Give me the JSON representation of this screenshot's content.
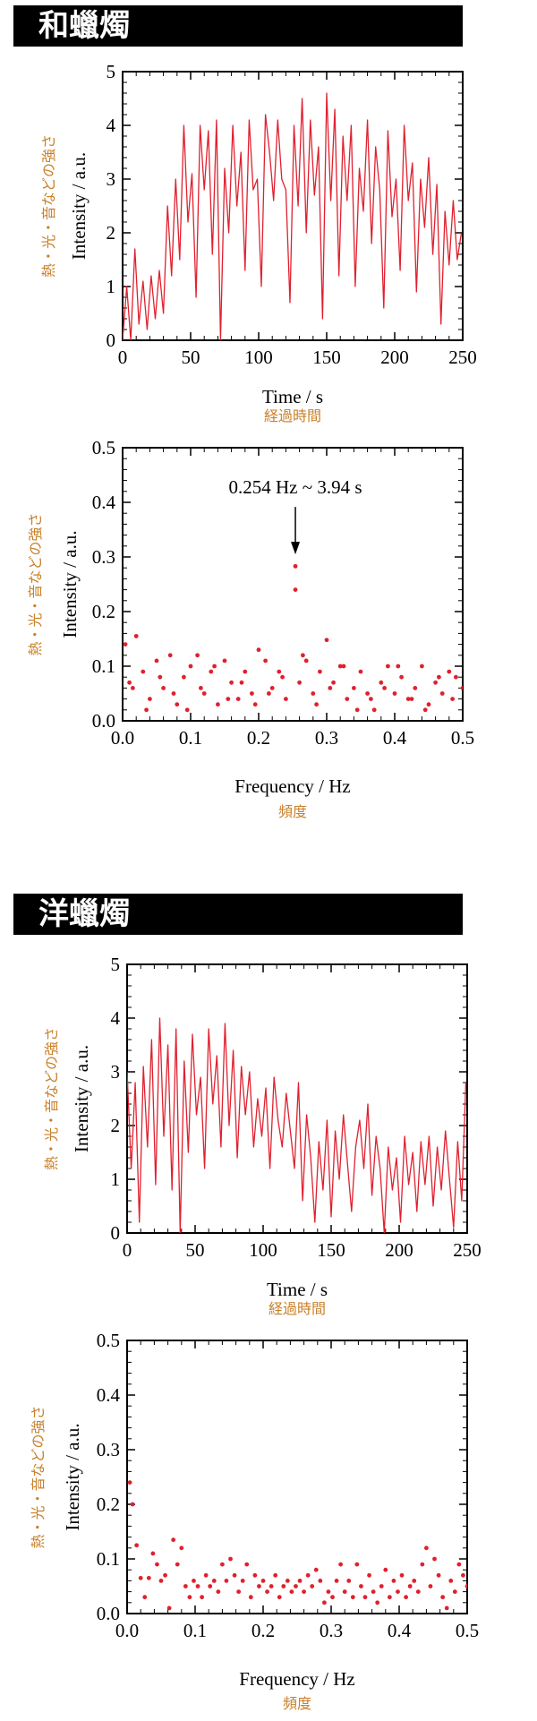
{
  "colors": {
    "line": "#e0202e",
    "point": "#e0202e",
    "jp_label": "#c8802a",
    "banner_bg": "#000000",
    "banner_text": "#ffffff"
  },
  "sections": [
    {
      "title": "和蠟燭"
    },
    {
      "title": "洋蠟燭"
    }
  ],
  "chart_data": [
    {
      "type": "line",
      "xlabel": "Time / s",
      "xlabel_jp": "経過時間",
      "ylabel": "Intensity / a.u.",
      "ylabel_jp": "熱・光・音などの強さ",
      "xlim": [
        0,
        250
      ],
      "ylim": [
        0,
        5
      ],
      "xticks": [
        "0",
        "50",
        "100",
        "150",
        "200",
        "250"
      ],
      "yticks": [
        "0",
        "1",
        "2",
        "3",
        "4",
        "5"
      ],
      "series": [
        {
          "x": [
            0,
            3,
            6,
            9,
            12,
            15,
            18,
            21,
            24,
            27,
            30,
            33,
            36,
            39,
            42,
            45,
            48,
            51,
            54,
            57,
            60,
            63,
            66,
            69,
            72,
            75,
            78,
            81,
            84,
            87,
            90,
            93,
            96,
            99,
            102,
            105,
            108,
            111,
            114,
            117,
            120,
            123,
            126,
            129,
            132,
            135,
            138,
            141,
            144,
            147,
            150,
            153,
            156,
            159,
            162,
            165,
            168,
            171,
            174,
            177,
            180,
            183,
            186,
            189,
            192,
            195,
            198,
            201,
            204,
            207,
            210,
            213,
            216,
            219,
            222,
            225,
            228,
            231,
            234,
            237,
            240,
            243,
            246,
            249
          ],
          "y": [
            0,
            1,
            0,
            1.7,
            0.3,
            1.1,
            0.2,
            1.2,
            0.4,
            1.3,
            0.5,
            2.5,
            1.2,
            3.0,
            1.5,
            4.0,
            2.2,
            3.1,
            0.8,
            4.0,
            2.8,
            3.9,
            1.6,
            4.1,
            0,
            3.2,
            2.0,
            4.0,
            2.5,
            3.5,
            1.3,
            4.1,
            2.8,
            3.0,
            1.0,
            4.2,
            3.5,
            2.6,
            4.1,
            3.0,
            2.8,
            0.7,
            4.0,
            2.5,
            4.5,
            2.0,
            4.1,
            2.7,
            3.6,
            0.4,
            4.6,
            2.6,
            4.3,
            1.2,
            3.8,
            2.6,
            4.0,
            1.0,
            3.2,
            2.4,
            4.1,
            1.8,
            3.6,
            2.8,
            0.6,
            3.9,
            2.3,
            3.0,
            1.3,
            4.0,
            2.6,
            3.3,
            0.9,
            3.0,
            2.1,
            3.4,
            1.6,
            2.9,
            0.3,
            2.4,
            1.4,
            2.6,
            1.5,
            2.0
          ]
        }
      ]
    },
    {
      "type": "scatter",
      "xlabel": "Frequency / Hz",
      "xlabel_jp": "頻度",
      "ylabel": "Intensity / a.u.",
      "ylabel_jp": "熱・光・音などの強さ",
      "xlim": [
        0,
        0.5
      ],
      "ylim": [
        0,
        0.5
      ],
      "xticks": [
        "0.0",
        "0.1",
        "0.2",
        "0.3",
        "0.4",
        "0.5"
      ],
      "yticks": [
        "0.0",
        "0.1",
        "0.2",
        "0.3",
        "0.4",
        "0.5"
      ],
      "annotation": {
        "text": "0.254 Hz ~ 3.94 s",
        "x": 0.254,
        "y": 0.285
      },
      "series": [
        {
          "x": [
            0.004,
            0.01,
            0.02,
            0.03,
            0.04,
            0.05,
            0.06,
            0.07,
            0.08,
            0.09,
            0.1,
            0.11,
            0.12,
            0.13,
            0.14,
            0.15,
            0.16,
            0.17,
            0.18,
            0.19,
            0.2,
            0.21,
            0.22,
            0.23,
            0.24,
            0.254,
            0.254,
            0.26,
            0.27,
            0.28,
            0.29,
            0.3,
            0.31,
            0.32,
            0.33,
            0.34,
            0.35,
            0.36,
            0.37,
            0.38,
            0.39,
            0.4,
            0.41,
            0.42,
            0.43,
            0.44,
            0.45,
            0.46,
            0.47,
            0.48,
            0.49,
            0.5,
            0.015,
            0.035,
            0.055,
            0.075,
            0.095,
            0.115,
            0.135,
            0.155,
            0.175,
            0.195,
            0.215,
            0.235,
            0.265,
            0.285,
            0.305,
            0.325,
            0.345,
            0.365,
            0.385,
            0.405,
            0.425,
            0.445,
            0.465,
            0.485
          ],
          "y": [
            0.14,
            0.07,
            0.155,
            0.09,
            0.04,
            0.11,
            0.06,
            0.12,
            0.03,
            0.08,
            0.1,
            0.12,
            0.05,
            0.09,
            0.03,
            0.11,
            0.07,
            0.04,
            0.09,
            0.05,
            0.13,
            0.11,
            0.06,
            0.09,
            0.04,
            0.24,
            0.283,
            0.07,
            0.11,
            0.05,
            0.09,
            0.148,
            0.07,
            0.1,
            0.04,
            0.06,
            0.09,
            0.05,
            0.02,
            0.07,
            0.1,
            0.05,
            0.08,
            0.04,
            0.06,
            0.1,
            0.03,
            0.07,
            0.05,
            0.09,
            0.08,
            0.06,
            0.06,
            0.02,
            0.08,
            0.05,
            0.02,
            0.06,
            0.1,
            0.04,
            0.07,
            0.03,
            0.05,
            0.08,
            0.12,
            0.03,
            0.06,
            0.1,
            0.02,
            0.04,
            0.06,
            0.1,
            0.04,
            0.02,
            0.08,
            0.04
          ]
        }
      ]
    },
    {
      "type": "line",
      "xlabel": "Time / s",
      "xlabel_jp": "経過時間",
      "ylabel": "Intensity / a.u.",
      "ylabel_jp": "熱・光・音などの強さ",
      "xlim": [
        0,
        250
      ],
      "ylim": [
        0,
        5
      ],
      "xticks": [
        "0",
        "50",
        "100",
        "150",
        "200",
        "250"
      ],
      "yticks": [
        "0",
        "1",
        "2",
        "3",
        "4",
        "5"
      ],
      "series": [
        {
          "x": [
            0,
            3,
            6,
            9,
            12,
            15,
            18,
            21,
            24,
            27,
            30,
            33,
            36,
            39,
            42,
            45,
            48,
            51,
            54,
            57,
            60,
            63,
            66,
            69,
            72,
            75,
            78,
            81,
            84,
            87,
            90,
            93,
            96,
            99,
            102,
            105,
            108,
            111,
            114,
            117,
            120,
            123,
            126,
            129,
            132,
            135,
            138,
            141,
            144,
            147,
            150,
            153,
            156,
            159,
            162,
            165,
            168,
            171,
            174,
            177,
            180,
            183,
            186,
            189,
            192,
            195,
            198,
            201,
            204,
            207,
            210,
            213,
            216,
            219,
            222,
            225,
            228,
            231,
            234,
            237,
            240,
            243,
            246,
            249
          ],
          "y": [
            3.0,
            1.2,
            2.8,
            0.2,
            3.1,
            1.6,
            3.6,
            0.9,
            4.0,
            1.8,
            3.5,
            0.8,
            3.8,
            0,
            3.2,
            1.5,
            3.7,
            2.2,
            2.9,
            1.2,
            3.8,
            2.4,
            3.3,
            1.6,
            3.9,
            2.0,
            3.4,
            1.4,
            3.1,
            2.2,
            3.0,
            1.6,
            2.5,
            1.8,
            2.7,
            1.2,
            2.9,
            2.1,
            1.6,
            2.6,
            1.9,
            1.2,
            2.8,
            0.6,
            2.2,
            1.4,
            0.2,
            1.7,
            0.8,
            2.1,
            0.3,
            1.9,
            1.0,
            2.2,
            1.3,
            0.4,
            1.6,
            2.1,
            1.2,
            2.4,
            0.7,
            1.8,
            1.2,
            0,
            1.6,
            0.8,
            1.4,
            0.2,
            1.8,
            0.9,
            1.5,
            0.4,
            1.7,
            0.9,
            1.8,
            0.5,
            1.6,
            0.8,
            1.9,
            1.0,
            0.1,
            1.7,
            0.6,
            2.8
          ]
        }
      ]
    },
    {
      "type": "scatter",
      "xlabel": "Frequency / Hz",
      "xlabel_jp": "頻度",
      "ylabel": "Intensity / a.u.",
      "ylabel_jp": "熱・光・音などの強さ",
      "xlim": [
        0,
        0.5
      ],
      "ylim": [
        0,
        0.5
      ],
      "xticks": [
        "0.0",
        "0.1",
        "0.2",
        "0.3",
        "0.4",
        "0.5"
      ],
      "yticks": [
        "0.0",
        "0.1",
        "0.2",
        "0.3",
        "0.4",
        "0.5"
      ],
      "series": [
        {
          "x": [
            0.004,
            0.008,
            0.014,
            0.02,
            0.026,
            0.032,
            0.038,
            0.044,
            0.05,
            0.056,
            0.062,
            0.068,
            0.074,
            0.08,
            0.086,
            0.092,
            0.098,
            0.104,
            0.11,
            0.116,
            0.122,
            0.128,
            0.134,
            0.14,
            0.146,
            0.152,
            0.158,
            0.164,
            0.17,
            0.176,
            0.182,
            0.188,
            0.194,
            0.2,
            0.206,
            0.212,
            0.218,
            0.224,
            0.23,
            0.236,
            0.242,
            0.248,
            0.254,
            0.26,
            0.266,
            0.272,
            0.278,
            0.284,
            0.29,
            0.296,
            0.302,
            0.308,
            0.314,
            0.32,
            0.326,
            0.332,
            0.338,
            0.344,
            0.35,
            0.356,
            0.362,
            0.368,
            0.374,
            0.38,
            0.386,
            0.392,
            0.398,
            0.404,
            0.41,
            0.416,
            0.422,
            0.428,
            0.434,
            0.44,
            0.446,
            0.452,
            0.458,
            0.464,
            0.47,
            0.476,
            0.482,
            0.488,
            0.494,
            0.5
          ],
          "y": [
            0.24,
            0.2,
            0.125,
            0.065,
            0.03,
            0.065,
            0.11,
            0.09,
            0.06,
            0.07,
            0.01,
            0.135,
            0.09,
            0.12,
            0.05,
            0.03,
            0.06,
            0.05,
            0.03,
            0.07,
            0.05,
            0.06,
            0.04,
            0.09,
            0.06,
            0.1,
            0.07,
            0.04,
            0.06,
            0.09,
            0.03,
            0.07,
            0.05,
            0.06,
            0.04,
            0.05,
            0.07,
            0.03,
            0.05,
            0.06,
            0.04,
            0.05,
            0.06,
            0.04,
            0.07,
            0.05,
            0.08,
            0.06,
            0.02,
            0.04,
            0.03,
            0.06,
            0.09,
            0.04,
            0.06,
            0.03,
            0.09,
            0.05,
            0.03,
            0.07,
            0.04,
            0.02,
            0.05,
            0.08,
            0.03,
            0.06,
            0.04,
            0.07,
            0.03,
            0.05,
            0.06,
            0.04,
            0.09,
            0.12,
            0.05,
            0.1,
            0.07,
            0.03,
            0.01,
            0.06,
            0.04,
            0.09,
            0.07,
            0.05
          ]
        }
      ]
    }
  ]
}
